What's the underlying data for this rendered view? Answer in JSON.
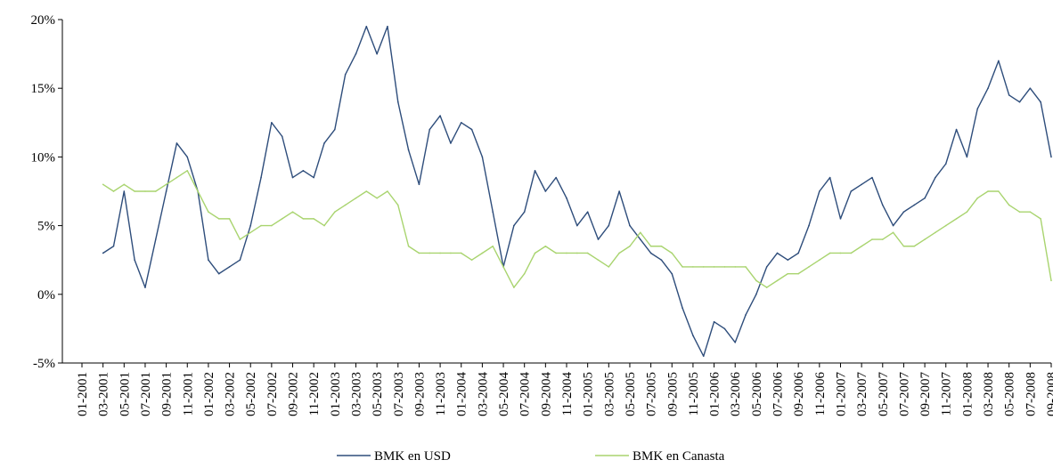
{
  "chart_data": {
    "type": "line",
    "title": "",
    "xlabel": "",
    "ylabel": "",
    "ylim": [
      -5,
      20
    ],
    "yticks": [
      "-5%",
      "0%",
      "5%",
      "10%",
      "15%",
      "20%"
    ],
    "ytick_values": [
      -5,
      0,
      5,
      10,
      15,
      20
    ],
    "xlim": [
      "2001-01",
      "2008-09"
    ],
    "xticks": [
      "01-2001",
      "03-2001",
      "05-2001",
      "07-2001",
      "09-2001",
      "11-2001",
      "01-2002",
      "03-2002",
      "05-2002",
      "07-2002",
      "09-2002",
      "11-2002",
      "01-2003",
      "03-2003",
      "05-2003",
      "07-2003",
      "09-2003",
      "11-2003",
      "01-2004",
      "03-2004",
      "05-2004",
      "07-2004",
      "09-2004",
      "11-2004",
      "01-2005",
      "03-2005",
      "05-2005",
      "07-2005",
      "09-2005",
      "11-2005",
      "01-2006",
      "03-2006",
      "05-2006",
      "07-2006",
      "09-2006",
      "11-2006",
      "01-2007",
      "03-2007",
      "05-2007",
      "07-2007",
      "09-2007",
      "11-2007",
      "01-2008",
      "03-2008",
      "05-2008",
      "07-2008",
      "09-2008"
    ],
    "grid": false,
    "legend_position": "bottom",
    "series": [
      {
        "name": "BMK en USD",
        "color": "#2e4d7b",
        "x": [
          "2001-03",
          "2001-04",
          "2001-05",
          "2001-06",
          "2001-07",
          "2001-08",
          "2001-09",
          "2001-10",
          "2001-11",
          "2001-12",
          "2002-01",
          "2002-02",
          "2002-03",
          "2002-04",
          "2002-05",
          "2002-06",
          "2002-07",
          "2002-08",
          "2002-09",
          "2002-10",
          "2002-11",
          "2002-12",
          "2003-01",
          "2003-02",
          "2003-03",
          "2003-04",
          "2003-05",
          "2003-06",
          "2003-07",
          "2003-08",
          "2003-09",
          "2003-10",
          "2003-11",
          "2003-12",
          "2004-01",
          "2004-02",
          "2004-03",
          "2004-04",
          "2004-05",
          "2004-06",
          "2004-07",
          "2004-08",
          "2004-09",
          "2004-10",
          "2004-11",
          "2004-12",
          "2005-01",
          "2005-02",
          "2005-03",
          "2005-04",
          "2005-05",
          "2005-06",
          "2005-07",
          "2005-08",
          "2005-09",
          "2005-10",
          "2005-11",
          "2005-12",
          "2006-01",
          "2006-02",
          "2006-03",
          "2006-04",
          "2006-05",
          "2006-06",
          "2006-07",
          "2006-08",
          "2006-09",
          "2006-10",
          "2006-11",
          "2006-12",
          "2007-01",
          "2007-02",
          "2007-03",
          "2007-04",
          "2007-05",
          "2007-06",
          "2007-07",
          "2007-08",
          "2007-09",
          "2007-10",
          "2007-11",
          "2007-12",
          "2008-01",
          "2008-02",
          "2008-03",
          "2008-04",
          "2008-05",
          "2008-06",
          "2008-07",
          "2008-08",
          "2008-09"
        ],
        "values": [
          3.0,
          3.5,
          7.5,
          2.5,
          0.5,
          4.0,
          7.5,
          11.0,
          10.0,
          7.5,
          2.5,
          1.5,
          2.0,
          2.5,
          5.0,
          8.5,
          12.5,
          11.5,
          8.5,
          9.0,
          8.5,
          11.0,
          12.0,
          16.0,
          17.5,
          19.5,
          17.5,
          19.5,
          14.0,
          10.5,
          8.0,
          12.0,
          13.0,
          11.0,
          12.5,
          12.0,
          10.0,
          6.0,
          2.0,
          5.0,
          6.0,
          9.0,
          7.5,
          8.5,
          7.0,
          5.0,
          6.0,
          4.0,
          5.0,
          7.5,
          5.0,
          4.0,
          3.0,
          2.5,
          1.5,
          -1.0,
          -3.0,
          -4.5,
          -2.0,
          -2.5,
          -3.5,
          -1.5,
          0.0,
          2.0,
          3.0,
          2.5,
          3.0,
          5.0,
          7.5,
          8.5,
          5.5,
          7.5,
          8.0,
          8.5,
          6.5,
          5.0,
          6.0,
          6.5,
          7.0,
          8.5,
          9.5,
          12.0,
          10.0,
          13.5,
          15.0,
          17.0,
          14.5,
          14.0,
          15.0,
          14.0,
          10.0
        ]
      },
      {
        "name": "BMK en Canasta",
        "color": "#a9d46f",
        "x": [
          "2001-03",
          "2001-04",
          "2001-05",
          "2001-06",
          "2001-07",
          "2001-08",
          "2001-09",
          "2001-10",
          "2001-11",
          "2001-12",
          "2002-01",
          "2002-02",
          "2002-03",
          "2002-04",
          "2002-05",
          "2002-06",
          "2002-07",
          "2002-08",
          "2002-09",
          "2002-10",
          "2002-11",
          "2002-12",
          "2003-01",
          "2003-02",
          "2003-03",
          "2003-04",
          "2003-05",
          "2003-06",
          "2003-07",
          "2003-08",
          "2003-09",
          "2003-10",
          "2003-11",
          "2003-12",
          "2004-01",
          "2004-02",
          "2004-03",
          "2004-04",
          "2004-05",
          "2004-06",
          "2004-07",
          "2004-08",
          "2004-09",
          "2004-10",
          "2004-11",
          "2004-12",
          "2005-01",
          "2005-02",
          "2005-03",
          "2005-04",
          "2005-05",
          "2005-06",
          "2005-07",
          "2005-08",
          "2005-09",
          "2005-10",
          "2005-11",
          "2005-12",
          "2006-01",
          "2006-02",
          "2006-03",
          "2006-04",
          "2006-05",
          "2006-06",
          "2006-07",
          "2006-08",
          "2006-09",
          "2006-10",
          "2006-11",
          "2006-12",
          "2007-01",
          "2007-02",
          "2007-03",
          "2007-04",
          "2007-05",
          "2007-06",
          "2007-07",
          "2007-08",
          "2007-09",
          "2007-10",
          "2007-11",
          "2007-12",
          "2008-01",
          "2008-02",
          "2008-03",
          "2008-04",
          "2008-05",
          "2008-06",
          "2008-07",
          "2008-08",
          "2008-09"
        ],
        "values": [
          8.0,
          7.5,
          8.0,
          7.5,
          7.5,
          7.5,
          8.0,
          8.5,
          9.0,
          7.5,
          6.0,
          5.5,
          5.5,
          4.0,
          4.5,
          5.0,
          5.0,
          5.5,
          6.0,
          5.5,
          5.5,
          5.0,
          6.0,
          6.5,
          7.0,
          7.5,
          7.0,
          7.5,
          6.5,
          3.5,
          3.0,
          3.0,
          3.0,
          3.0,
          3.0,
          2.5,
          3.0,
          3.5,
          2.0,
          0.5,
          1.5,
          3.0,
          3.5,
          3.0,
          3.0,
          3.0,
          3.0,
          2.5,
          2.0,
          3.0,
          3.5,
          4.5,
          3.5,
          3.5,
          3.0,
          2.0,
          2.0,
          2.0,
          2.0,
          2.0,
          2.0,
          2.0,
          1.0,
          0.5,
          1.0,
          1.5,
          1.5,
          2.0,
          2.5,
          3.0,
          3.0,
          3.0,
          3.5,
          4.0,
          4.0,
          4.5,
          3.5,
          3.5,
          4.0,
          4.5,
          5.0,
          5.5,
          6.0,
          7.0,
          7.5,
          7.5,
          6.5,
          6.0,
          6.0,
          5.5,
          1.0
        ]
      }
    ]
  }
}
